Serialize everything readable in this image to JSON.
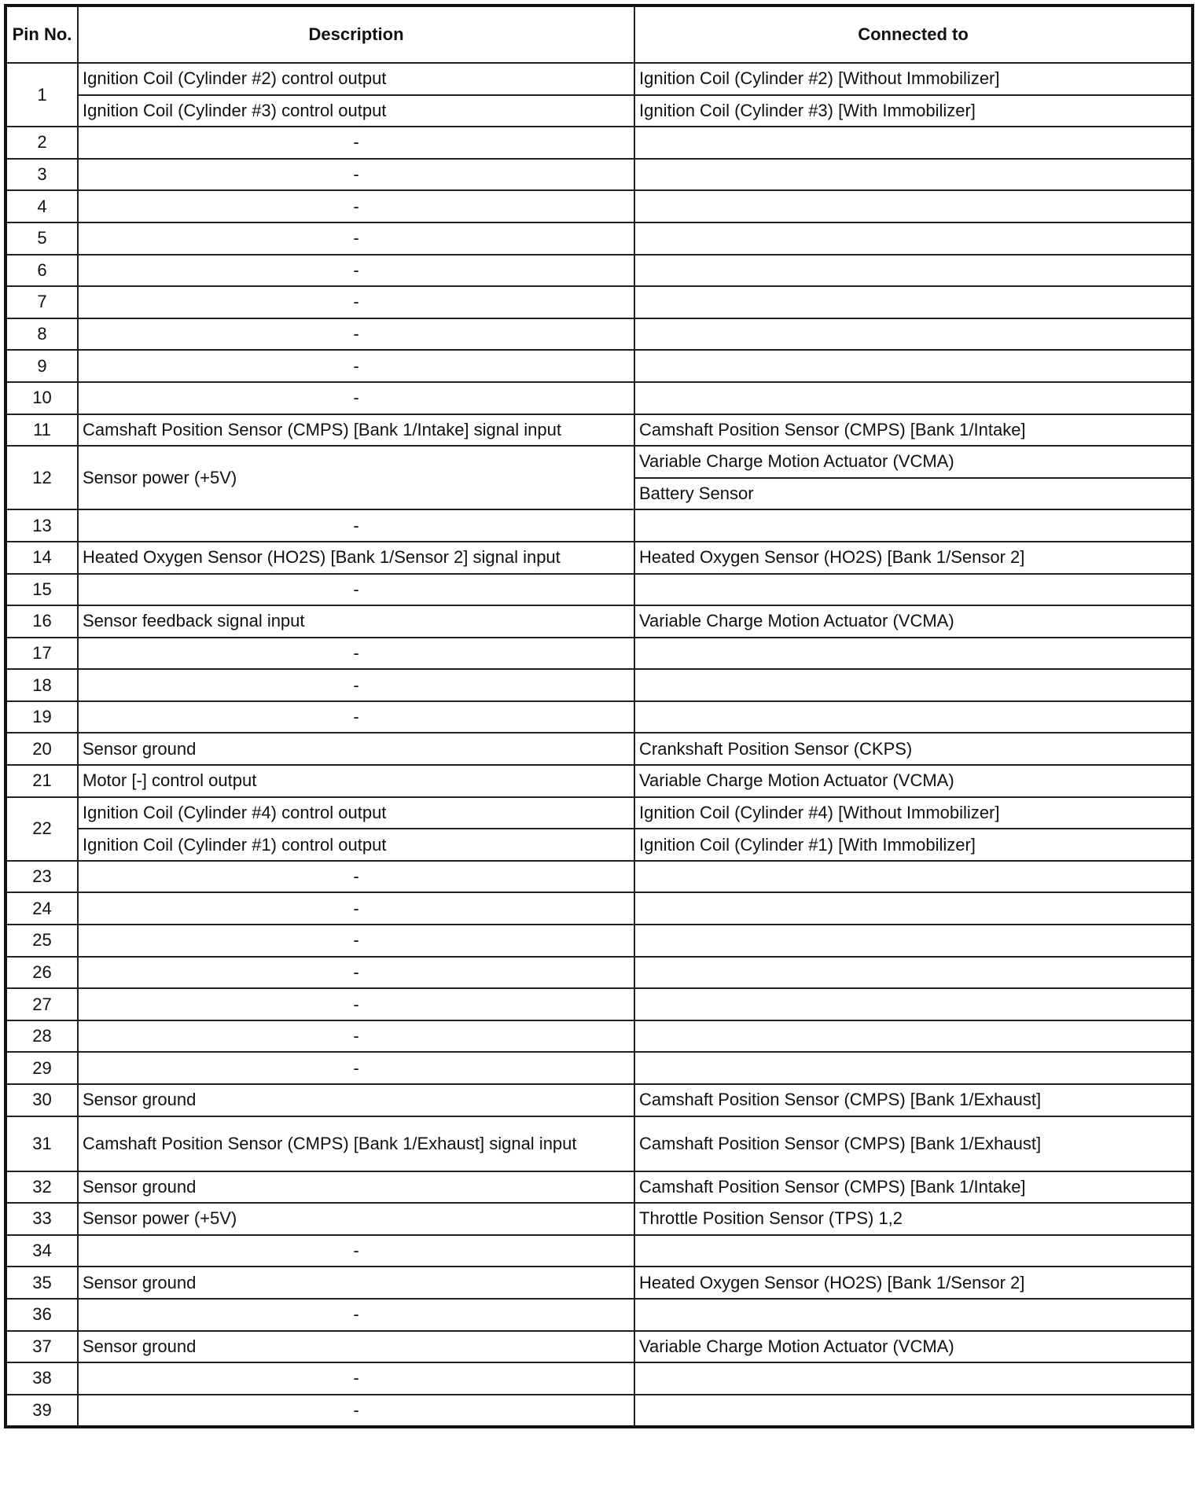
{
  "headers": {
    "pin": "Pin No.",
    "description": "Description",
    "connected": "Connected to"
  },
  "rows": [
    {
      "pin": "1",
      "sub": [
        {
          "desc": "Ignition Coil (Cylinder #2) control output",
          "conn": "Ignition Coil (Cylinder #2) [Without Immobilizer]"
        },
        {
          "desc": "Ignition Coil (Cylinder #3) control output",
          "conn": "Ignition Coil (Cylinder #3) [With Immobilizer]"
        }
      ]
    },
    {
      "pin": "2",
      "desc": "-",
      "conn": ""
    },
    {
      "pin": "3",
      "desc": "-",
      "conn": ""
    },
    {
      "pin": "4",
      "desc": "-",
      "conn": ""
    },
    {
      "pin": "5",
      "desc": "-",
      "conn": ""
    },
    {
      "pin": "6",
      "desc": "-",
      "conn": ""
    },
    {
      "pin": "7",
      "desc": "-",
      "conn": ""
    },
    {
      "pin": "8",
      "desc": "-",
      "conn": ""
    },
    {
      "pin": "9",
      "desc": "-",
      "conn": ""
    },
    {
      "pin": "10",
      "desc": "-",
      "conn": ""
    },
    {
      "pin": "11",
      "desc": "Camshaft Position Sensor (CMPS) [Bank 1/Intake] signal input",
      "conn": "Camshaft Position Sensor (CMPS) [Bank 1/Intake]"
    },
    {
      "pin": "12",
      "desc": "Sensor power (+5V)",
      "conns": [
        "Variable Charge Motion Actuator (VCMA)",
        "Battery Sensor"
      ]
    },
    {
      "pin": "13",
      "desc": "-",
      "conn": ""
    },
    {
      "pin": "14",
      "desc": "Heated Oxygen Sensor (HO2S) [Bank 1/Sensor 2] signal input",
      "conn": "Heated Oxygen Sensor (HO2S) [Bank 1/Sensor 2]"
    },
    {
      "pin": "15",
      "desc": "-",
      "conn": ""
    },
    {
      "pin": "16",
      "desc": "Sensor feedback signal input",
      "conn": "Variable Charge Motion Actuator (VCMA)"
    },
    {
      "pin": "17",
      "desc": "-",
      "conn": ""
    },
    {
      "pin": "18",
      "desc": "-",
      "conn": ""
    },
    {
      "pin": "19",
      "desc": "-",
      "conn": ""
    },
    {
      "pin": "20",
      "desc": "Sensor ground",
      "conn": "Crankshaft Position Sensor (CKPS)"
    },
    {
      "pin": "21",
      "desc": "Motor [-] control output",
      "conn": "Variable Charge Motion Actuator (VCMA)"
    },
    {
      "pin": "22",
      "sub": [
        {
          "desc": "Ignition Coil (Cylinder #4) control output",
          "conn": "Ignition Coil (Cylinder #4) [Without Immobilizer]"
        },
        {
          "desc": "Ignition Coil (Cylinder #1) control output",
          "conn": "Ignition Coil (Cylinder #1) [With Immobilizer]"
        }
      ]
    },
    {
      "pin": "23",
      "desc": "-",
      "conn": ""
    },
    {
      "pin": "24",
      "desc": "-",
      "conn": ""
    },
    {
      "pin": "25",
      "desc": "-",
      "conn": ""
    },
    {
      "pin": "26",
      "desc": "-",
      "conn": ""
    },
    {
      "pin": "27",
      "desc": "-",
      "conn": ""
    },
    {
      "pin": "28",
      "desc": "-",
      "conn": ""
    },
    {
      "pin": "29",
      "desc": "-",
      "conn": ""
    },
    {
      "pin": "30",
      "desc": "Sensor ground",
      "conn": "Camshaft Position Sensor (CMPS) [Bank 1/Exhaust]"
    },
    {
      "pin": "31",
      "desc": "Camshaft Position Sensor (CMPS) [Bank 1/Exhaust] signal input",
      "conn": "Camshaft Position Sensor (CMPS) [Bank 1/Exhaust]",
      "tall": true
    },
    {
      "pin": "32",
      "desc": "Sensor ground",
      "conn": "Camshaft Position Sensor (CMPS) [Bank 1/Intake]"
    },
    {
      "pin": "33",
      "desc": "Sensor power (+5V)",
      "conn": "Throttle Position Sensor (TPS) 1,2"
    },
    {
      "pin": "34",
      "desc": "-",
      "conn": ""
    },
    {
      "pin": "35",
      "desc": "Sensor ground",
      "conn": "Heated Oxygen Sensor (HO2S) [Bank 1/Sensor 2]"
    },
    {
      "pin": "36",
      "desc": "-",
      "conn": ""
    },
    {
      "pin": "37",
      "desc": "Sensor ground",
      "conn": "Variable Charge Motion Actuator (VCMA)"
    },
    {
      "pin": "38",
      "desc": "-",
      "conn": ""
    },
    {
      "pin": "39",
      "desc": "-",
      "conn": ""
    }
  ]
}
